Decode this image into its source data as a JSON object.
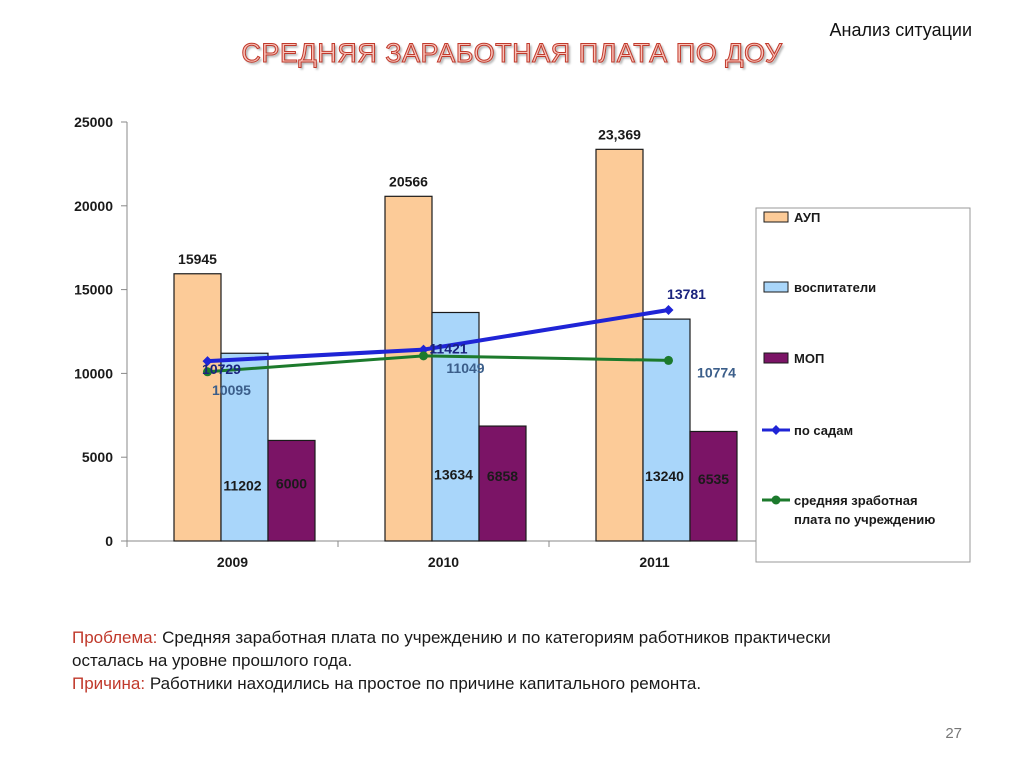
{
  "header": {
    "section_label": "Анализ ситуации",
    "title": "СРЕДНЯЯ ЗАРАБОТНАЯ ПЛАТА ПО ДОУ"
  },
  "colors": {
    "aup": "#fccb98",
    "educators": "#a9d6fa",
    "mop": "#7b1466",
    "po_sadam": "#1f24d6",
    "avg": "#1c7a2c",
    "title_fill": "#f9c3ba",
    "title_stroke": "#c0392b",
    "label_red": "#c0392b"
  },
  "chart_data": {
    "type": "bar",
    "categories": [
      "2009",
      "2010",
      "2011"
    ],
    "ylim": [
      0,
      25000
    ],
    "yticks": [
      0,
      5000,
      10000,
      15000,
      20000,
      25000
    ],
    "grid": false,
    "legend_position": "right",
    "series": [
      {
        "name": "АУП",
        "kind": "bar",
        "values": [
          15945,
          20566,
          23369
        ],
        "labels": [
          "15945",
          "20566",
          "23,369"
        ]
      },
      {
        "name": "воспитатели",
        "kind": "bar",
        "values": [
          11202,
          13634,
          13240
        ],
        "labels": [
          "11202",
          "13634",
          "13240"
        ]
      },
      {
        "name": "МОП",
        "kind": "bar",
        "values": [
          6000,
          6858,
          6535
        ],
        "labels": [
          "6000",
          "6858",
          "6535"
        ]
      },
      {
        "name": "по садам",
        "kind": "line",
        "values": [
          10729,
          11421,
          13781
        ],
        "labels": [
          "10729",
          "11421",
          "13781"
        ]
      },
      {
        "name": "средняя зработная плата по учреждению",
        "kind": "line",
        "values": [
          10095,
          11049,
          10774
        ],
        "labels": [
          "10095",
          "11049",
          "10774"
        ]
      }
    ]
  },
  "notes": {
    "problem_label": "Проблема:",
    "problem_text": "Средняя заработная плата по учреждению и по категориям работников практически осталась на уровне прошлого года.",
    "reason_label": "Причина:",
    "reason_text": "Работники находились на простое по причине капитального ремонта."
  },
  "footer": {
    "page_number": "27"
  }
}
